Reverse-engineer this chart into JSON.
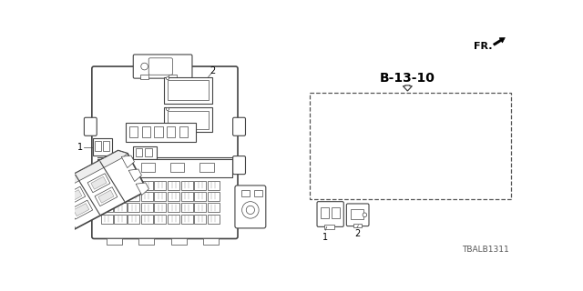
{
  "bg_color": "#ffffff",
  "title_code": "B-13-10",
  "part_code": "TBALB1311",
  "fr_label": "FR.",
  "line_color": "#444444",
  "lw_main": 0.8,
  "lw_thin": 0.5,
  "lw_thick": 1.2
}
